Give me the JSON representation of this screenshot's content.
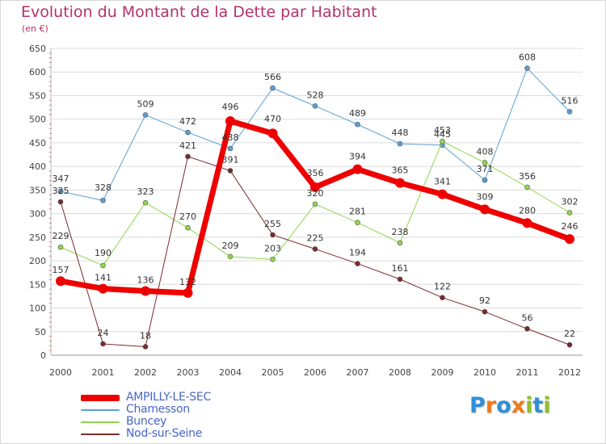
{
  "header": {
    "title": "Evolution du Montant de la Dette par Habitant",
    "unit": "(en €)"
  },
  "logo": {
    "text": "Proxiti",
    "letters": [
      {
        "ch": "P",
        "color": "#2e8fd6"
      },
      {
        "ch": "r",
        "color": "#ef7a1a"
      },
      {
        "ch": "o",
        "color": "#2e8fd6"
      },
      {
        "ch": "x",
        "color": "#ef7a1a"
      },
      {
        "ch": "i",
        "color": "#8dbf2b"
      },
      {
        "ch": "t",
        "color": "#2e8fd6"
      },
      {
        "ch": "i",
        "color": "#8dbf2b"
      }
    ]
  },
  "chart_data": {
    "type": "line",
    "title": "Evolution du Montant de la Dette par Habitant",
    "xlabel": "",
    "ylabel": "(en €)",
    "x": [
      "2000",
      "2001",
      "2002",
      "2003",
      "2004",
      "2005",
      "2006",
      "2007",
      "2008",
      "2009",
      "2010",
      "2011",
      "2012"
    ],
    "ylim": [
      0,
      650
    ],
    "yticks": [
      0,
      50,
      100,
      150,
      200,
      250,
      300,
      350,
      400,
      450,
      500,
      550,
      600,
      650
    ],
    "grid": "horizontal",
    "legend_position": "bottom-left",
    "series": [
      {
        "name": "AMPILLY-LE-SEC",
        "color": "#ee0000",
        "width": 7,
        "marker": 6,
        "values": [
          157,
          141,
          136,
          132,
          496,
          470,
          356,
          394,
          365,
          341,
          309,
          280,
          246
        ]
      },
      {
        "name": "Chamesson",
        "color": "#5a9fd4",
        "width": 1,
        "marker": 3,
        "values": [
          347,
          328,
          509,
          472,
          438,
          566,
          528,
          489,
          448,
          445,
          371,
          608,
          516
        ]
      },
      {
        "name": "Buncey",
        "color": "#8ed64f",
        "width": 1,
        "marker": 3,
        "values": [
          229,
          190,
          323,
          270,
          209,
          203,
          320,
          281,
          238,
          453,
          408,
          356,
          302
        ]
      },
      {
        "name": "Nod-sur-Seine",
        "color": "#7a2a2a",
        "width": 1,
        "marker": 3,
        "values": [
          325,
          24,
          18,
          421,
          391,
          255,
          225,
          194,
          161,
          122,
          92,
          56,
          22
        ]
      }
    ]
  }
}
